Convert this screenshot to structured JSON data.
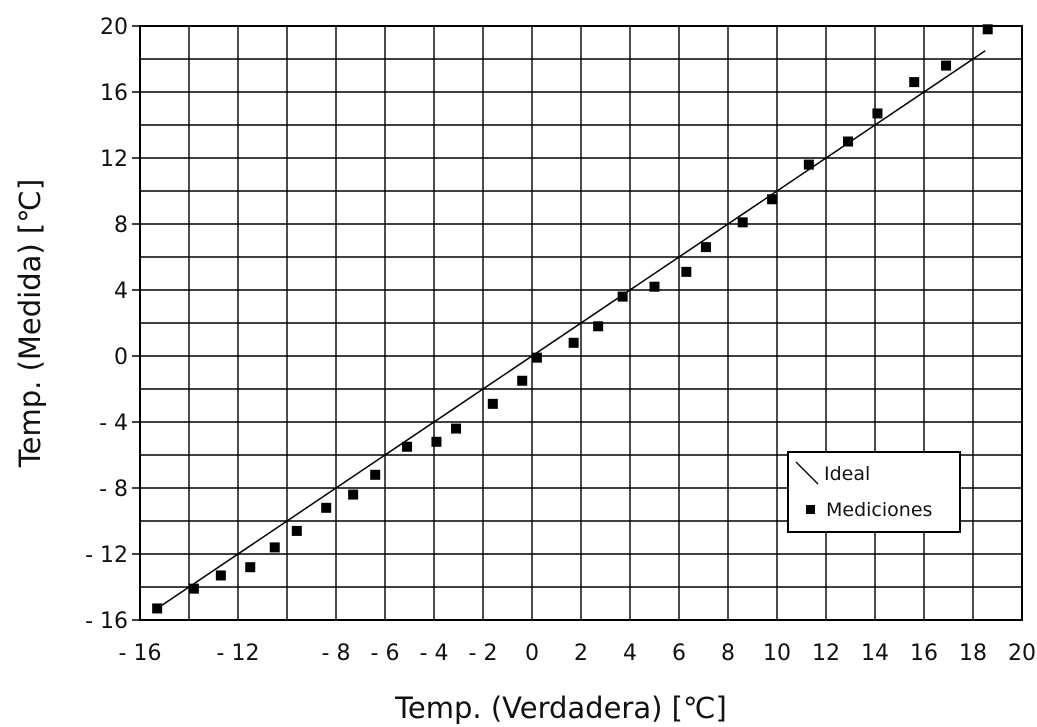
{
  "chart_data": {
    "type": "scatter",
    "xlabel": "Temp. (Verdadera) [℃]",
    "ylabel": "Temp. (Medida) [℃]",
    "xlim": [
      -16,
      20
    ],
    "ylim": [
      -16,
      20
    ],
    "grid": true,
    "x_tick_labels": [
      "- 16",
      "- 12",
      "- 8",
      "- 6",
      "- 4",
      "- 2",
      "0",
      "2",
      "4",
      "6",
      "8",
      "10",
      "12",
      "14",
      "16",
      "18",
      "20"
    ],
    "x_tick_values": [
      -16,
      -12,
      -8,
      -6,
      -4,
      -2,
      0,
      2,
      4,
      6,
      8,
      10,
      12,
      14,
      16,
      18,
      20
    ],
    "y_tick_labels": [
      "- 16",
      "- 12",
      "- 8",
      "- 4",
      "0",
      "4",
      "8",
      "12",
      "16",
      "20"
    ],
    "y_tick_values": [
      -16,
      -12,
      -8,
      -4,
      0,
      4,
      8,
      12,
      16,
      20
    ],
    "legend": {
      "placement": "bottom-right",
      "entries": [
        "Ideal",
        "Mediciones"
      ]
    },
    "series": [
      {
        "name": "Ideal",
        "kind": "line",
        "x": [
          -15.3,
          18.5
        ],
        "y": [
          -15.3,
          18.5
        ]
      },
      {
        "name": "Mediciones",
        "kind": "scatter",
        "x": [
          -15.3,
          -13.8,
          -12.7,
          -11.5,
          -10.5,
          -9.6,
          -8.4,
          -7.3,
          -6.4,
          -5.1,
          -3.9,
          -3.1,
          -1.6,
          -0.4,
          0.2,
          1.7,
          2.7,
          3.7,
          5.0,
          6.3,
          7.1,
          8.6,
          9.8,
          11.3,
          12.9,
          14.1,
          15.6,
          16.9,
          18.6
        ],
        "y": [
          -15.3,
          -14.1,
          -13.3,
          -12.8,
          -11.6,
          -10.6,
          -9.2,
          -8.4,
          -7.2,
          -5.5,
          -5.2,
          -4.4,
          -2.9,
          -1.5,
          -0.1,
          0.8,
          1.8,
          3.6,
          4.2,
          5.1,
          6.6,
          8.1,
          9.5,
          11.6,
          13.0,
          14.7,
          16.6,
          17.6,
          19.8
        ]
      }
    ]
  }
}
